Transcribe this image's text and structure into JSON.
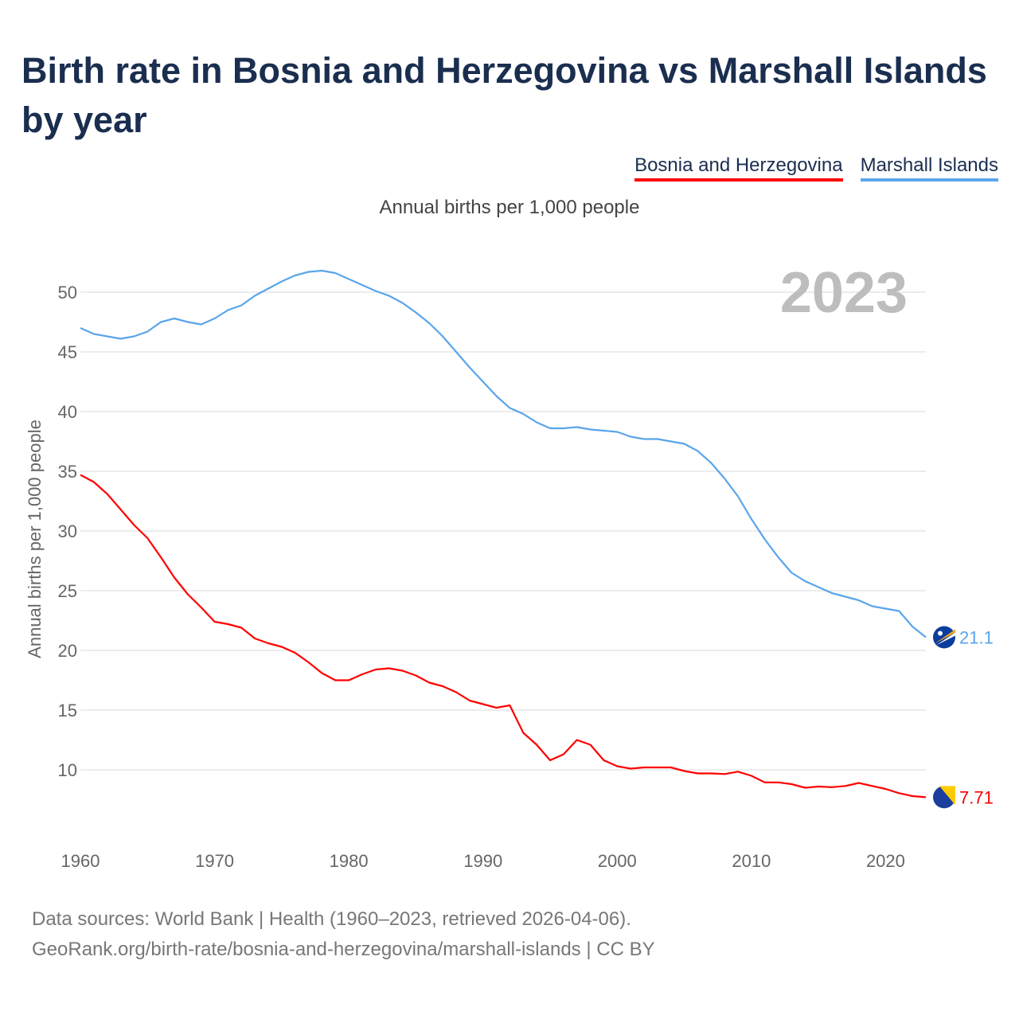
{
  "title": "Birth rate in Bosnia and Herzegovina vs Marshall Islands by year",
  "subtitle": "Annual births per 1,000 people",
  "footer": {
    "line1": "Data sources: World Bank | Health (1960–2023, retrieved 2026-04-06).",
    "line2": "GeoRank.org/birth-rate/bosnia-and-herzegovina/marshall-islands | CC BY"
  },
  "chart_data": {
    "type": "line",
    "title": "Birth rate in Bosnia and Herzegovina vs Marshall Islands by year",
    "ylabel": "Annual births per 1,000 people",
    "xlabel": "",
    "year_label": "2023",
    "x_start": 1960,
    "x_end": 2023,
    "xlim": [
      1960,
      2023
    ],
    "ylim": [
      5.5,
      52
    ],
    "xticks": [
      "1960",
      "1970",
      "1980",
      "1990",
      "2000",
      "2010",
      "2020"
    ],
    "yticks": [
      "10",
      "15",
      "20",
      "25",
      "30",
      "35",
      "40",
      "45",
      "50"
    ],
    "grid": true,
    "legend_position": "top-right",
    "series": [
      {
        "name": "Bosnia and Herzegovina",
        "color": "#ff0000",
        "end_label": "7.71",
        "flag_icon": "bosnia-flag-icon",
        "values": [
          34.7,
          34.1,
          33.1,
          31.8,
          30.5,
          29.4,
          27.8,
          26.1,
          24.7,
          23.6,
          22.4,
          22.2,
          21.9,
          21.0,
          20.6,
          20.3,
          19.8,
          19.0,
          18.1,
          17.5,
          17.5,
          18.0,
          18.4,
          18.5,
          18.3,
          17.9,
          17.3,
          17.0,
          16.5,
          15.8,
          15.5,
          15.2,
          15.4,
          13.1,
          12.1,
          10.8,
          11.3,
          12.5,
          12.1,
          10.8,
          10.3,
          10.1,
          10.2,
          10.2,
          10.2,
          9.9,
          9.7,
          9.7,
          9.65,
          9.85,
          9.5,
          8.95,
          8.95,
          8.8,
          8.5,
          8.6,
          8.55,
          8.65,
          8.9,
          8.65,
          8.4,
          8.05,
          7.8,
          7.71
        ]
      },
      {
        "name": "Marshall Islands",
        "color": "#5aa5ea",
        "end_label": "21.1",
        "flag_icon": "marshall-islands-flag-icon",
        "values": [
          47.0,
          46.5,
          46.3,
          46.1,
          46.3,
          46.7,
          47.5,
          47.8,
          47.5,
          47.3,
          47.8,
          48.5,
          48.9,
          49.7,
          50.3,
          50.9,
          51.4,
          51.7,
          51.8,
          51.6,
          51.1,
          50.6,
          50.1,
          49.7,
          49.1,
          48.3,
          47.4,
          46.3,
          45.0,
          43.7,
          42.5,
          41.3,
          40.3,
          39.8,
          39.1,
          38.6,
          38.6,
          38.7,
          38.5,
          38.4,
          38.3,
          37.9,
          37.7,
          37.7,
          37.5,
          37.3,
          36.7,
          35.7,
          34.4,
          32.9,
          31.0,
          29.3,
          27.8,
          26.5,
          25.8,
          25.3,
          24.8,
          24.5,
          24.2,
          23.7,
          23.5,
          23.3,
          22.0,
          21.1
        ]
      }
    ]
  }
}
